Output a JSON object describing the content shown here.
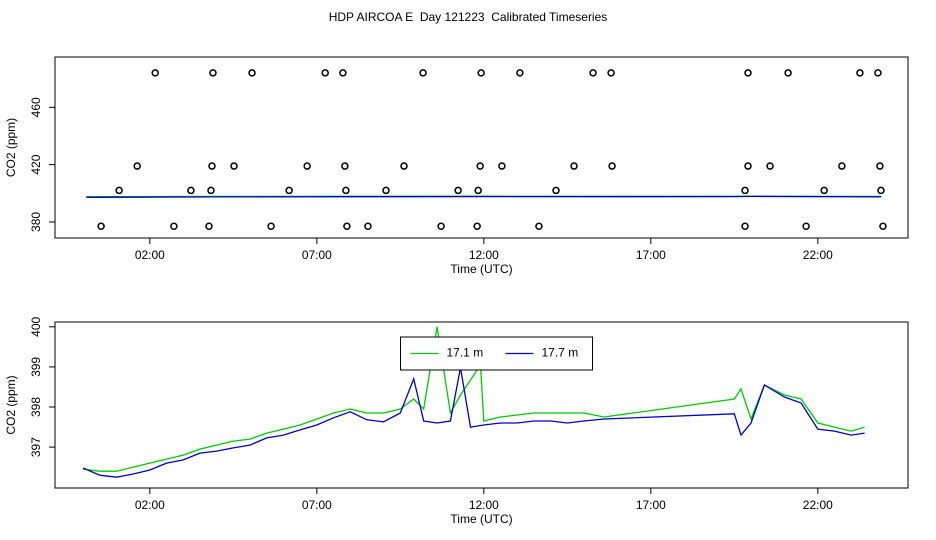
{
  "title": "HDP AIRCOA E  Day 121223  Calibrated Timeseries",
  "chart_data": [
    {
      "type": "scatter",
      "xlabel": "Time (UTC)",
      "ylabel": "CO2 (ppm)",
      "xlim": [
        -0.84,
        24.7
      ],
      "ylim": [
        368.8,
        495.1
      ],
      "xticks": [
        {
          "value": 2,
          "label": "02:00"
        },
        {
          "value": 7,
          "label": "07:00"
        },
        {
          "value": 12,
          "label": "12:00"
        },
        {
          "value": 17,
          "label": "17:00"
        },
        {
          "value": 22,
          "label": "22:00"
        }
      ],
      "yticks": [
        380,
        420,
        460
      ],
      "series": [
        {
          "style": "points",
          "color": "#000000",
          "x": [
            2.16,
            3.89,
            5.06,
            7.25,
            7.78,
            10.18,
            11.92,
            13.08,
            15.27,
            15.81,
            19.91,
            21.11,
            23.26,
            23.8,
            1.62,
            3.86,
            4.52,
            6.71,
            7.84,
            9.61,
            11.89,
            12.54,
            14.7,
            15.84,
            19.91,
            20.57,
            22.72,
            23.86,
            1.08,
            3.23,
            3.83,
            6.17,
            7.87,
            9.07,
            11.23,
            11.83,
            14.16,
            19.82,
            22.19,
            23.89,
            0.54,
            2.72,
            3.77,
            5.63,
            7.9,
            8.53,
            10.72,
            11.8,
            13.65,
            19.82,
            21.65,
            23.95
          ],
          "values": [
            484,
            484,
            484,
            484,
            484,
            484,
            484,
            484,
            484,
            484,
            484,
            484,
            484,
            484,
            419,
            419,
            419,
            419,
            419,
            419,
            419,
            419,
            419,
            419,
            419,
            419,
            419,
            419,
            402,
            402,
            402,
            402,
            402,
            402,
            402,
            402,
            402,
            402,
            402,
            402,
            377,
            377,
            377,
            377,
            377,
            377,
            377,
            377,
            377,
            377,
            377,
            377
          ]
        },
        {
          "style": "line",
          "color": "#00cc00",
          "x": [
            0.1,
            4,
            8,
            12,
            16,
            19.5,
            20,
            23.9
          ],
          "values": [
            397.6,
            397.8,
            397.9,
            398,
            397.9,
            397.9,
            398,
            397.8
          ]
        },
        {
          "style": "line",
          "color": "#0000cc",
          "x": [
            0.1,
            4,
            8,
            12,
            16,
            19.5,
            20,
            23.9
          ],
          "values": [
            397.2,
            397.5,
            397.6,
            397.7,
            397.6,
            397.7,
            397.8,
            397.5
          ]
        }
      ]
    },
    {
      "type": "line",
      "xlabel": "Time (UTC)",
      "ylabel": "CO2 (ppm)",
      "xlim": [
        -0.84,
        24.7
      ],
      "ylim": [
        395.98,
        400.12
      ],
      "xticks": [
        {
          "value": 2,
          "label": "02:00"
        },
        {
          "value": 7,
          "label": "07:00"
        },
        {
          "value": 12,
          "label": "12:00"
        },
        {
          "value": 17,
          "label": "17:00"
        },
        {
          "value": 22,
          "label": "22:00"
        }
      ],
      "yticks": [
        397,
        398,
        399,
        400
      ],
      "legend": "top",
      "series": [
        {
          "name": "17.1 m",
          "color": "#00cc00",
          "x": [
            0,
            0.5,
            1,
            1.5,
            2,
            2.5,
            3,
            3.5,
            4,
            4.5,
            5,
            5.5,
            6,
            6.5,
            7,
            7.5,
            8,
            8.5,
            9,
            9.5,
            9.9,
            10.2,
            10.6,
            11,
            11.3,
            11.9,
            12,
            12.5,
            13,
            13.5,
            14,
            14.5,
            15,
            15.6,
            19.5,
            19.7,
            20,
            20.4,
            21,
            21.5,
            22,
            22.5,
            23,
            23.4
          ],
          "values": [
            396.45,
            396.4,
            396.4,
            396.5,
            396.6,
            396.7,
            396.8,
            396.95,
            397.05,
            397.15,
            397.2,
            397.35,
            397.45,
            397.55,
            397.7,
            397.85,
            397.95,
            397.85,
            397.85,
            397.95,
            398.2,
            397.95,
            400.0,
            397.85,
            398.3,
            399.05,
            397.65,
            397.75,
            397.8,
            397.85,
            397.85,
            397.85,
            397.85,
            397.75,
            398.2,
            398.45,
            397.7,
            398.55,
            398.3,
            398.2,
            397.6,
            397.5,
            397.4,
            397.5
          ]
        },
        {
          "name": "17.7 m",
          "color": "#0000cc",
          "x": [
            0,
            0.5,
            1,
            1.5,
            2,
            2.5,
            3,
            3.5,
            4,
            4.5,
            5,
            5.5,
            6,
            6.5,
            7,
            7.5,
            8,
            8.5,
            9,
            9.5,
            9.9,
            10.2,
            10.6,
            11,
            11.3,
            11.6,
            12,
            12.5,
            13,
            13.5,
            14,
            14.5,
            15,
            15.6,
            19.5,
            19.7,
            20,
            20.4,
            21,
            21.5,
            22,
            22.5,
            23,
            23.4
          ],
          "values": [
            396.48,
            396.3,
            396.25,
            396.33,
            396.43,
            396.6,
            396.68,
            396.85,
            396.9,
            396.98,
            397.05,
            397.23,
            397.3,
            397.43,
            397.55,
            397.73,
            397.88,
            397.68,
            397.63,
            397.85,
            398.7,
            397.65,
            397.6,
            397.65,
            398.98,
            397.5,
            397.55,
            397.6,
            397.6,
            397.65,
            397.65,
            397.6,
            397.65,
            397.7,
            397.83,
            397.3,
            397.6,
            398.55,
            398.25,
            398.1,
            397.45,
            397.4,
            397.3,
            397.35
          ]
        }
      ]
    }
  ]
}
